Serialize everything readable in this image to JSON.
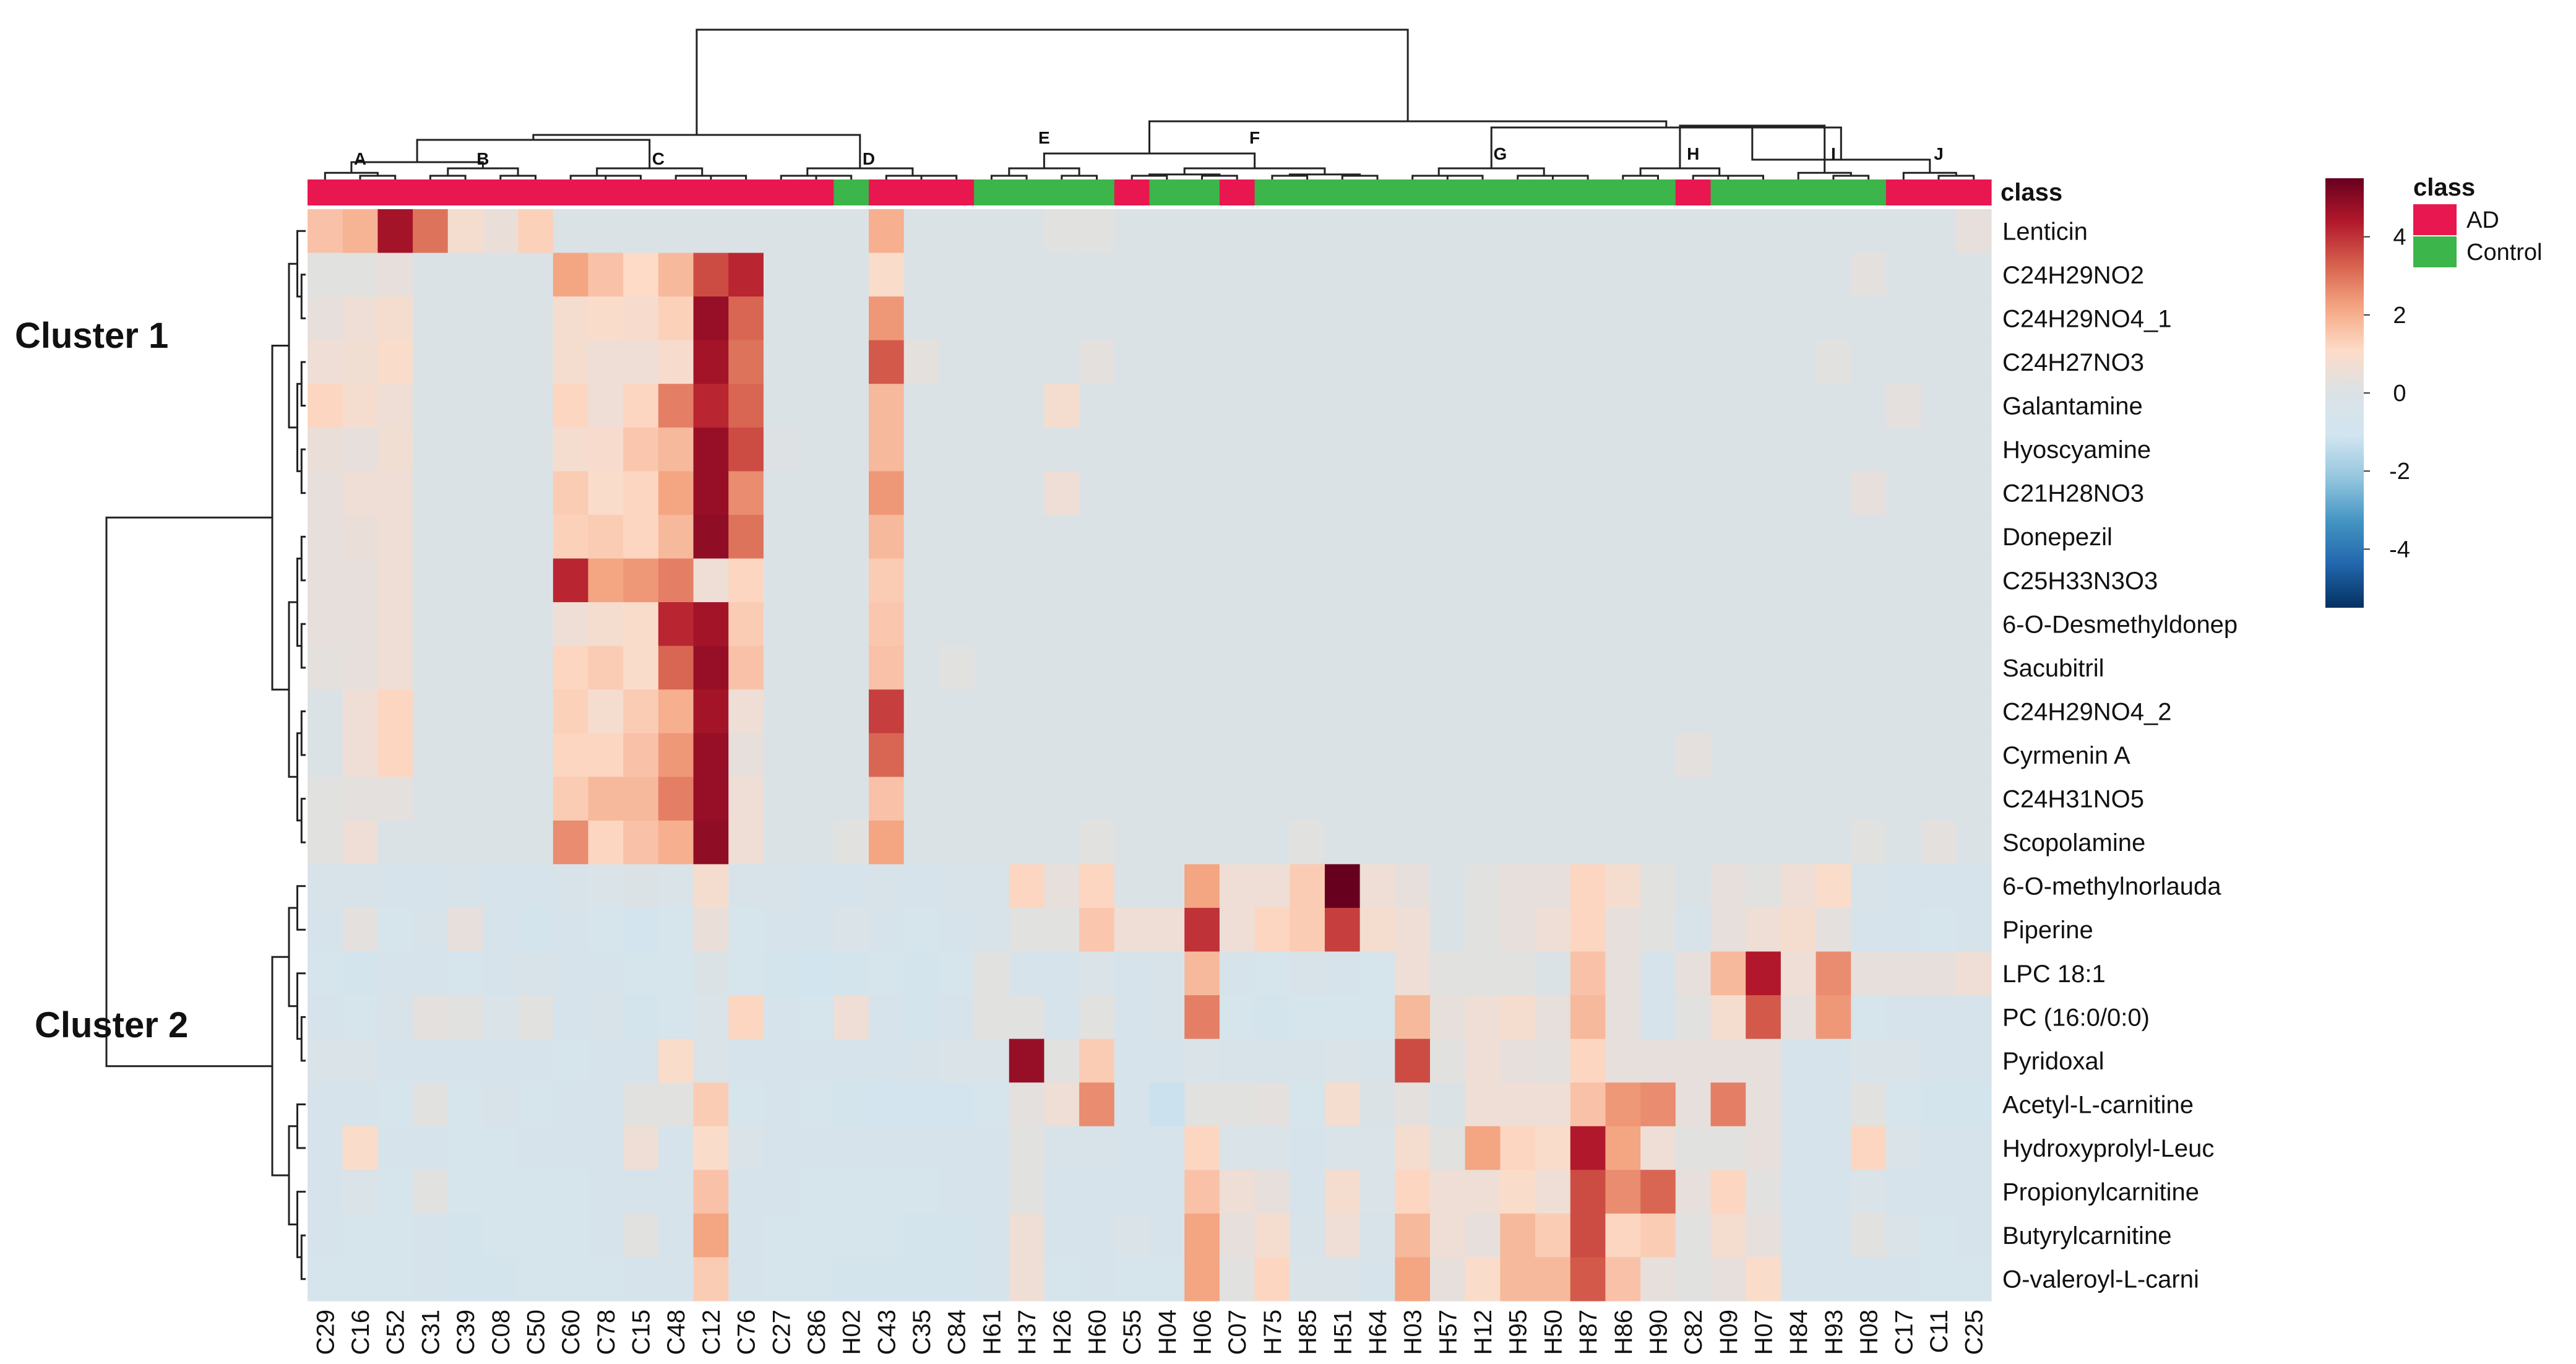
{
  "chart_data": {
    "type": "heatmap",
    "columns": [
      "C29",
      "C16",
      "C52",
      "C31",
      "C39",
      "C08",
      "C50",
      "C60",
      "C78",
      "C15",
      "C48",
      "C12",
      "C76",
      "C27",
      "C86",
      "H02",
      "C43",
      "C35",
      "C84",
      "H61",
      "H37",
      "H26",
      "H60",
      "C55",
      "H04",
      "H06",
      "C07",
      "H75",
      "H85",
      "H51",
      "H64",
      "H03",
      "H57",
      "H12",
      "H95",
      "H50",
      "H87",
      "H86",
      "H90",
      "C82",
      "H09",
      "H07",
      "H84",
      "H93",
      "H08",
      "C17",
      "C11",
      "C25"
    ],
    "column_classes": [
      "AD",
      "AD",
      "AD",
      "AD",
      "AD",
      "AD",
      "AD",
      "AD",
      "AD",
      "AD",
      "AD",
      "AD",
      "AD",
      "AD",
      "AD",
      "Control",
      "AD",
      "AD",
      "AD",
      "Control",
      "Control",
      "Control",
      "Control",
      "AD",
      "Control",
      "Control",
      "AD",
      "Control",
      "Control",
      "Control",
      "Control",
      "Control",
      "Control",
      "Control",
      "Control",
      "Control",
      "Control",
      "Control",
      "Control",
      "AD",
      "Control",
      "Control",
      "Control",
      "Control",
      "Control",
      "AD",
      "AD",
      "AD"
    ],
    "rows": [
      "Lenticin",
      "C24H29NO2",
      "C24H29NO4_1",
      "C24H27NO3",
      "Galantamine",
      "Hyoscyamine",
      "C21H28NO3",
      "Donepezil",
      "C25H33N3O3",
      "6-O-Desmethyldonep",
      "Sacubitril",
      "C24H29NO4_2",
      "Cyrmenin A",
      "C24H31NO5",
      "Scopolamine",
      "6-O-methylnorlauda",
      "Piperine",
      "LPC 18:1",
      "PC (16:0/0:0)",
      "Pyridoxal",
      "Acetyl-L-carnitine",
      "Hydroxyprolyl-Leuc",
      "Propionylcarnitine",
      "Butyrylcarnitine",
      "O-valeroyl-L-carni"
    ],
    "row_clusters": [
      {
        "name": "Cluster 1",
        "rows": [
          0,
          14
        ]
      },
      {
        "name": "Cluster 2",
        "rows": [
          15,
          24
        ]
      }
    ],
    "column_groups": [
      {
        "name": "A",
        "cols": [
          0,
          3
        ]
      },
      {
        "name": "B",
        "cols": [
          3,
          7
        ]
      },
      {
        "name": "C",
        "cols": [
          7,
          13
        ]
      },
      {
        "name": "D",
        "cols": [
          13,
          19
        ]
      },
      {
        "name": "E",
        "cols": [
          19,
          23
        ]
      },
      {
        "name": "F",
        "cols": [
          23,
          31
        ]
      },
      {
        "name": "G",
        "cols": [
          31,
          37
        ]
      },
      {
        "name": "H",
        "cols": [
          37,
          42
        ]
      },
      {
        "name": "I",
        "cols": [
          42,
          45
        ]
      },
      {
        "name": "J",
        "cols": [
          45,
          48
        ]
      }
    ],
    "annotation_title": "class",
    "legend": {
      "title": "class",
      "position": "top-right",
      "entries": [
        {
          "label": "AD",
          "color": "#e8174f"
        },
        {
          "label": "Control",
          "color": "#3cb54a"
        }
      ]
    },
    "color_scale": {
      "min": -5.5,
      "max": 5.5,
      "ticks": [
        4,
        2,
        0,
        -2,
        -4
      ],
      "colors": [
        "#053061",
        "#2166ac",
        "#4393c3",
        "#92c5de",
        "#d1e5f0",
        "#dbe2e6",
        "#fddbc7",
        "#f4a582",
        "#d6604d",
        "#b2182b",
        "#67001f"
      ]
    },
    "values": [
      [
        1.6,
        1.9,
        4.6,
        3.0,
        0.8,
        0.5,
        1.3,
        0,
        0,
        0,
        0,
        0,
        0,
        0,
        0,
        0,
        2.0,
        0,
        0,
        0,
        0,
        0.2,
        0.2,
        0,
        0,
        0,
        0,
        0,
        0,
        0,
        0,
        0,
        0,
        0,
        0,
        0,
        0,
        0,
        0,
        0,
        0,
        0,
        0,
        0,
        0,
        0,
        0,
        0.4
      ],
      [
        0.2,
        0.2,
        0.4,
        0,
        0,
        0,
        0,
        2.2,
        1.6,
        1.1,
        1.8,
        3.6,
        4.2,
        0,
        0,
        0,
        1.0,
        0,
        0,
        0,
        0,
        0,
        0,
        0,
        0,
        0,
        0,
        0,
        0,
        0,
        0,
        0,
        0,
        0,
        0,
        0,
        0,
        0,
        0,
        0,
        0,
        0,
        0,
        0,
        0.3,
        0,
        0,
        0
      ],
      [
        0.4,
        0.6,
        0.8,
        0,
        0,
        0,
        0,
        0.8,
        1.0,
        0.9,
        1.3,
        4.8,
        3.2,
        0,
        0,
        0,
        2.4,
        0,
        0,
        0,
        0,
        0,
        0,
        0,
        0,
        0,
        0,
        0,
        0,
        0,
        0,
        0,
        0,
        0,
        0,
        0,
        0,
        0,
        0,
        0,
        0,
        0,
        0,
        0,
        0,
        0,
        0,
        0
      ],
      [
        0.6,
        0.7,
        1.0,
        0,
        0,
        0,
        0,
        0.8,
        0.6,
        0.6,
        0.9,
        4.6,
        3.0,
        0,
        0,
        0,
        3.4,
        0.3,
        0,
        0,
        0,
        0,
        0.3,
        0,
        0,
        0,
        0,
        0,
        0,
        0,
        0,
        0,
        0,
        0,
        0,
        0,
        0,
        0,
        0,
        0,
        0,
        0,
        0,
        0.2,
        0,
        0,
        0,
        0
      ],
      [
        1.2,
        0.8,
        0.6,
        0,
        0,
        0,
        0,
        1.2,
        0.6,
        1.2,
        2.8,
        4.2,
        3.2,
        0,
        0,
        0,
        1.8,
        0,
        0,
        0,
        0,
        0.8,
        0,
        0,
        0,
        0,
        0,
        0,
        0,
        0,
        0,
        0,
        0,
        0,
        0,
        0,
        0,
        0,
        0,
        0,
        0,
        0,
        0,
        0,
        0,
        0.3,
        0,
        0
      ],
      [
        0.5,
        0.4,
        0.7,
        0,
        0,
        0,
        0,
        0.8,
        0.9,
        1.5,
        1.8,
        4.8,
        3.6,
        0.1,
        0,
        0,
        1.8,
        0,
        0,
        0,
        0,
        0,
        0,
        0,
        0,
        0,
        0,
        0,
        0,
        0,
        0,
        0,
        0,
        0,
        0,
        0,
        0,
        0,
        0,
        0,
        0,
        0,
        0,
        0,
        0,
        0,
        0,
        0
      ],
      [
        0.4,
        0.6,
        0.6,
        0,
        0,
        0,
        0,
        1.4,
        1.0,
        1.2,
        2.2,
        4.8,
        2.6,
        0,
        0,
        0,
        2.4,
        0,
        0,
        0,
        0,
        0.6,
        0,
        0,
        0,
        0,
        0,
        0,
        0,
        0,
        0,
        0,
        0,
        0,
        0,
        0,
        0,
        0,
        0,
        0,
        0,
        0,
        0,
        0,
        0.4,
        0,
        0,
        0
      ],
      [
        0.4,
        0.5,
        0.6,
        0,
        0,
        0,
        0,
        1.3,
        1.4,
        1.2,
        1.8,
        4.9,
        3.0,
        0,
        0,
        0,
        1.8,
        0,
        0,
        0,
        0,
        0,
        0,
        0,
        0,
        0,
        0,
        0,
        0,
        0,
        0,
        0,
        0,
        0,
        0,
        0,
        0,
        0,
        0,
        0,
        0,
        0,
        0,
        0,
        0,
        0,
        0,
        0
      ],
      [
        0.4,
        0.4,
        0.6,
        0,
        0,
        0,
        0,
        4.2,
        2.2,
        2.4,
        2.8,
        0.6,
        1.2,
        0,
        0,
        0,
        1.4,
        0,
        0,
        0,
        0,
        0,
        0,
        0,
        0,
        0,
        0,
        0,
        0,
        0,
        0,
        0,
        0,
        0,
        0,
        0,
        0,
        0,
        0,
        0,
        0,
        0,
        0,
        0,
        0,
        0,
        0,
        0
      ],
      [
        0.4,
        0.4,
        0.6,
        0,
        0,
        0,
        0,
        0.6,
        0.8,
        1.0,
        4.2,
        4.6,
        1.4,
        0,
        0,
        0,
        1.5,
        0,
        0,
        0,
        0,
        0,
        0,
        0,
        0,
        0,
        0,
        0,
        0,
        0,
        0,
        0,
        0,
        0,
        0,
        0,
        0,
        0,
        0,
        0,
        0,
        0,
        0,
        0,
        0,
        0,
        0,
        0
      ],
      [
        0.3,
        0.4,
        0.6,
        0,
        0,
        0,
        0,
        1.2,
        1.4,
        1.0,
        3.2,
        4.8,
        1.6,
        0,
        0,
        0,
        1.6,
        0,
        0.2,
        0,
        0,
        0,
        0,
        0,
        0,
        0,
        0,
        0,
        0,
        0,
        0,
        0,
        0,
        0,
        0,
        0,
        0,
        0,
        0,
        0,
        0,
        0,
        0,
        0,
        0,
        0,
        0,
        0
      ],
      [
        0,
        0.6,
        1.2,
        0,
        0,
        0,
        0,
        1.3,
        0.8,
        1.4,
        2.0,
        4.6,
        0.6,
        0,
        0,
        0,
        3.8,
        0,
        0,
        0,
        0,
        0,
        0,
        0,
        0,
        0,
        0,
        0,
        0,
        0,
        0,
        0,
        0,
        0,
        0,
        0,
        0,
        0,
        0,
        0,
        0,
        0,
        0,
        0,
        0,
        0,
        0,
        0
      ],
      [
        0,
        0.6,
        1.2,
        0,
        0,
        0,
        0,
        1.2,
        1.2,
        1.6,
        2.4,
        4.8,
        0.4,
        0,
        0,
        0,
        3.2,
        0,
        0,
        0,
        0,
        0,
        0,
        0,
        0,
        0,
        0,
        0,
        0,
        0,
        0,
        0,
        0,
        0,
        0,
        0,
        0,
        0,
        0,
        0.3,
        0,
        0,
        0,
        0,
        0,
        0,
        0,
        0
      ],
      [
        0.2,
        0.3,
        0.3,
        0,
        0,
        0,
        0,
        1.4,
        1.8,
        1.8,
        2.8,
        4.8,
        0.6,
        0,
        0,
        0,
        1.6,
        0,
        0,
        0,
        0,
        0,
        0,
        0,
        0,
        0,
        0,
        0,
        0,
        0,
        0,
        0,
        0,
        0,
        0,
        0,
        0,
        0,
        0,
        0,
        0,
        0,
        0,
        0,
        0,
        0,
        0,
        0
      ],
      [
        0.2,
        0.6,
        0,
        0,
        0,
        0,
        0,
        2.6,
        1.2,
        1.6,
        2.0,
        4.9,
        0.6,
        0,
        0,
        0.2,
        2.2,
        0,
        0,
        0,
        0,
        0,
        0.2,
        0,
        0,
        0,
        0,
        0,
        0.2,
        0,
        0,
        0,
        0,
        0,
        0,
        0,
        0,
        0,
        0,
        0,
        0,
        0,
        0,
        0,
        0.2,
        0,
        0.3,
        0
      ],
      [
        -0.3,
        -0.3,
        -0.4,
        -0.4,
        -0.3,
        -0.4,
        -0.4,
        -0.3,
        -0.2,
        0,
        -0.2,
        0.8,
        -0.3,
        -0.3,
        -0.4,
        -0.4,
        -0.3,
        -0.4,
        -0.3,
        -0.3,
        1.2,
        0.4,
        1.2,
        0,
        0,
        2.2,
        0.6,
        0.6,
        1.4,
        5.5,
        0.6,
        0.4,
        0,
        0.2,
        0.4,
        0.4,
        1.2,
        0.8,
        0.2,
        0,
        0.4,
        0.2,
        0.6,
        1.0,
        -0.3,
        -0.4,
        -0.4,
        -0.5
      ],
      [
        -0.4,
        0.3,
        -0.6,
        -0.3,
        0.4,
        -0.4,
        -0.8,
        -0.4,
        -0.6,
        -0.9,
        -0.6,
        0.5,
        -0.6,
        -0.4,
        -0.4,
        -0.2,
        -0.4,
        -0.6,
        -0.4,
        -0.3,
        0.2,
        0.2,
        1.5,
        0.6,
        0.6,
        4.0,
        0.6,
        1.2,
        1.4,
        3.8,
        0.8,
        0.6,
        0,
        0.2,
        0.4,
        0.6,
        1.2,
        0.4,
        0.2,
        -0.3,
        0.4,
        0.6,
        0.8,
        0.3,
        -0.4,
        -0.5,
        -0.6,
        -0.5
      ],
      [
        -0.6,
        -0.8,
        -0.4,
        -0.4,
        -0.6,
        -0.4,
        -0.3,
        -0.4,
        -0.4,
        -0.6,
        -0.6,
        0,
        -0.6,
        -0.8,
        -1.0,
        -0.8,
        -0.6,
        -0.8,
        -0.6,
        0.2,
        -0.4,
        -0.4,
        -0.2,
        -0.4,
        -0.3,
        1.8,
        -0.4,
        -0.6,
        -0.3,
        -0.4,
        -0.6,
        0.6,
        0.2,
        0.2,
        0.2,
        0,
        1.6,
        0.4,
        -0.4,
        0.4,
        1.8,
        4.4,
        0.6,
        2.6,
        0.4,
        0.4,
        0.4,
        0.6
      ],
      [
        -0.4,
        -0.6,
        -0.3,
        0.3,
        0.2,
        -0.2,
        0.2,
        -0.4,
        -0.3,
        -0.8,
        -0.6,
        -0.2,
        1.2,
        -0.4,
        -0.6,
        0.6,
        -0.4,
        -0.8,
        -0.4,
        0.2,
        0.2,
        -0.4,
        0.2,
        -0.4,
        -0.3,
        2.8,
        -0.6,
        -0.8,
        -0.6,
        -0.6,
        -0.6,
        1.8,
        0.4,
        0.6,
        0.8,
        0.4,
        1.8,
        0.4,
        -0.4,
        0.2,
        0.8,
        3.4,
        0.4,
        2.4,
        -0.6,
        -0.4,
        -0.5,
        -0.4
      ],
      [
        -0.2,
        -0.2,
        -0.4,
        -0.4,
        -0.4,
        -0.4,
        -0.5,
        -0.6,
        -0.5,
        -0.4,
        1.0,
        -0.2,
        -0.4,
        -0.4,
        -0.4,
        -0.4,
        -0.4,
        -0.3,
        -0.2,
        -0.2,
        4.8,
        0.2,
        1.4,
        -0.4,
        -0.4,
        -0.2,
        -0.3,
        -0.3,
        -0.3,
        -0.2,
        -0.3,
        3.6,
        0.2,
        0.6,
        0.4,
        0.3,
        1.2,
        0.4,
        0.4,
        0.4,
        0.4,
        0.4,
        -0.4,
        -0.4,
        -0.2,
        -0.2,
        -0.5,
        -0.5
      ],
      [
        -0.5,
        -0.4,
        -0.6,
        0.2,
        -0.6,
        -0.3,
        -0.6,
        -0.4,
        -0.4,
        0.2,
        0.2,
        1.4,
        -0.6,
        -0.4,
        -0.6,
        -0.8,
        -0.9,
        -0.9,
        -0.9,
        -0.6,
        0.3,
        0.6,
        2.6,
        -0.4,
        -1.2,
        0.2,
        0.2,
        0.3,
        -0.6,
        0.8,
        0,
        0.3,
        0,
        0.6,
        0.6,
        0.6,
        1.6,
        2.4,
        2.6,
        0.4,
        2.8,
        0.4,
        -0.4,
        -0.4,
        0.2,
        -0.6,
        -0.8,
        -0.8
      ],
      [
        -0.4,
        1.0,
        -0.4,
        -0.5,
        -0.6,
        -0.6,
        -0.4,
        -0.4,
        -0.4,
        0.6,
        -0.4,
        1.0,
        -0.2,
        -0.4,
        -0.4,
        -0.4,
        -0.4,
        -0.4,
        -0.4,
        -0.4,
        0.2,
        -0.3,
        -0.3,
        -0.4,
        -0.4,
        1.2,
        -0.2,
        -0.2,
        -0.4,
        -0.2,
        -0.2,
        0.8,
        0.2,
        2.2,
        1.2,
        1.0,
        4.4,
        2.2,
        0.6,
        0.2,
        0.2,
        0.4,
        -0.4,
        -0.4,
        1.2,
        -0.2,
        -0.4,
        -0.4
      ],
      [
        -0.4,
        -0.2,
        -0.6,
        0.2,
        -0.6,
        -0.6,
        -0.6,
        -0.6,
        -0.4,
        -0.4,
        -0.4,
        1.6,
        -0.4,
        -0.4,
        -0.6,
        -0.6,
        -0.6,
        -0.6,
        -0.4,
        -0.4,
        0.2,
        -0.4,
        -0.4,
        -0.4,
        -0.4,
        1.6,
        0.6,
        0.4,
        -0.4,
        0.8,
        -0.2,
        1.2,
        0.6,
        0.6,
        1.0,
        0.6,
        3.6,
        2.6,
        3.2,
        0.4,
        1.2,
        0.2,
        -0.4,
        -0.4,
        -0.2,
        -0.4,
        -0.4,
        -0.4
      ],
      [
        -0.4,
        -0.6,
        -0.6,
        -0.4,
        -0.8,
        -0.6,
        -0.6,
        -0.6,
        -0.4,
        0.2,
        -0.4,
        2.2,
        -0.4,
        -0.6,
        -0.6,
        -0.6,
        -0.6,
        -0.8,
        -0.8,
        -0.4,
        0.6,
        -0.4,
        -0.4,
        -0.2,
        -0.4,
        2.2,
        0.4,
        0.8,
        -0.3,
        0.6,
        -0.3,
        1.8,
        0.6,
        0.4,
        1.8,
        1.4,
        3.6,
        1.2,
        1.4,
        0.2,
        0.8,
        0.4,
        -0.4,
        -0.4,
        0.2,
        -0.2,
        -0.6,
        -0.4
      ],
      [
        -0.6,
        -0.6,
        -0.6,
        -0.5,
        -0.8,
        -0.8,
        -0.6,
        -0.6,
        -0.6,
        -0.4,
        -0.4,
        1.4,
        -0.4,
        -0.6,
        -0.6,
        -0.8,
        -0.8,
        -0.8,
        -0.8,
        -0.4,
        0.6,
        -0.6,
        -0.4,
        -0.6,
        -0.6,
        2.2,
        0.2,
        1.2,
        -0.2,
        -0.2,
        -0.4,
        2.2,
        0.4,
        1.0,
        1.8,
        1.8,
        3.4,
        1.6,
        0.4,
        0.2,
        0.4,
        1.0,
        -0.4,
        -0.4,
        -0.4,
        -0.4,
        -0.6,
        -0.6
      ]
    ]
  }
}
